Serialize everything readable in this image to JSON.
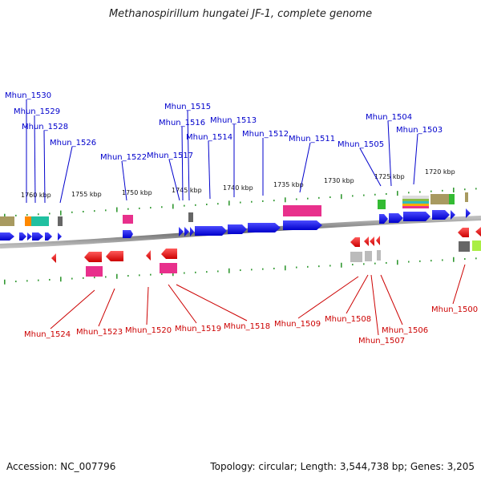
{
  "title": "Methanospirillum hungatei JF-1, complete genome",
  "accession": "Accession: NC_007796",
  "topology": "Topology: circular; Length: 3,544,738 bp; Genes: 3,205",
  "colors": {
    "forward_label": "#0000cc",
    "reverse_label": "#cc0000",
    "forward_gene": "#0000ee",
    "reverse_gene": "#ee0000",
    "backbone": "#888888"
  },
  "kbp_labels": [
    "1760 kbp",
    "1755 kbp",
    "1750 kbp",
    "1745 kbp",
    "1740 kbp",
    "1735 kbp",
    "1730 kbp",
    "1725 kbp",
    "1720 kbp"
  ],
  "top_labels": [
    "Mhun_1530",
    "Mhun_1529",
    "Mhun_1528",
    "Mhun_1526",
    "Mhun_1522",
    "Mhun_1517",
    "Mhun_1516",
    "Mhun_1515",
    "Mhun_1514",
    "Mhun_1513",
    "Mhun_1512",
    "Mhun_1511",
    "Mhun_1505",
    "Mhun_1504",
    "Mhun_1503"
  ],
  "bottom_labels": [
    "Mhun_1524",
    "Mhun_1523",
    "Mhun_1520",
    "Mhun_1519",
    "Mhun_1518",
    "Mhun_1509",
    "Mhun_1508",
    "Mhun_1507",
    "Mhun_1506",
    "Mhun_1500"
  ]
}
